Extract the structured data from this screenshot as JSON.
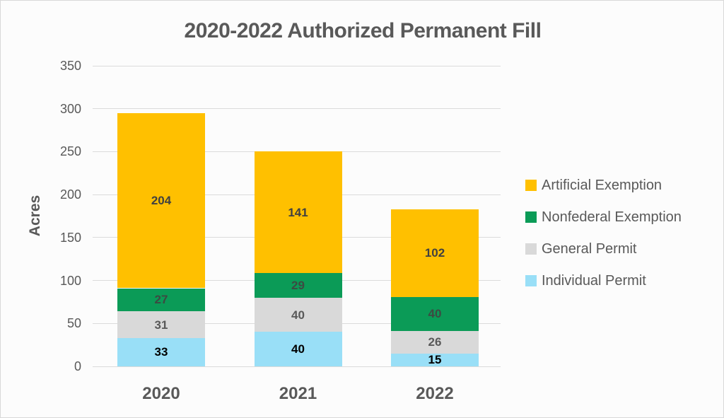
{
  "chart_data": {
    "type": "bar",
    "stacked": true,
    "title": "2020-2022 Authorized Permanent Fill",
    "xlabel": "",
    "ylabel": "Acres",
    "categories": [
      "2020",
      "2021",
      "2022"
    ],
    "series": [
      {
        "name": "Individual Permit",
        "color": "#99DFF7",
        "label_color": "#000000",
        "values": [
          33,
          40,
          15
        ]
      },
      {
        "name": "General Permit",
        "color": "#D9D9D9",
        "label_color": "#595959",
        "values": [
          31,
          40,
          26
        ]
      },
      {
        "name": "Nonfederal Exemption",
        "color": "#0B9B57",
        "label_color": "#3D4A42",
        "values": [
          27,
          29,
          40
        ]
      },
      {
        "name": "Artificial Exemption",
        "color": "#FFC000",
        "label_color": "#404040",
        "values": [
          204,
          141,
          102
        ]
      }
    ],
    "legend_order": [
      "Artificial Exemption",
      "Nonfederal Exemption",
      "General Permit",
      "Individual Permit"
    ],
    "legend_position": "right",
    "ylim": [
      0,
      350
    ],
    "yticks": [
      0,
      50,
      100,
      150,
      200,
      250,
      300,
      350
    ],
    "grid": true
  }
}
